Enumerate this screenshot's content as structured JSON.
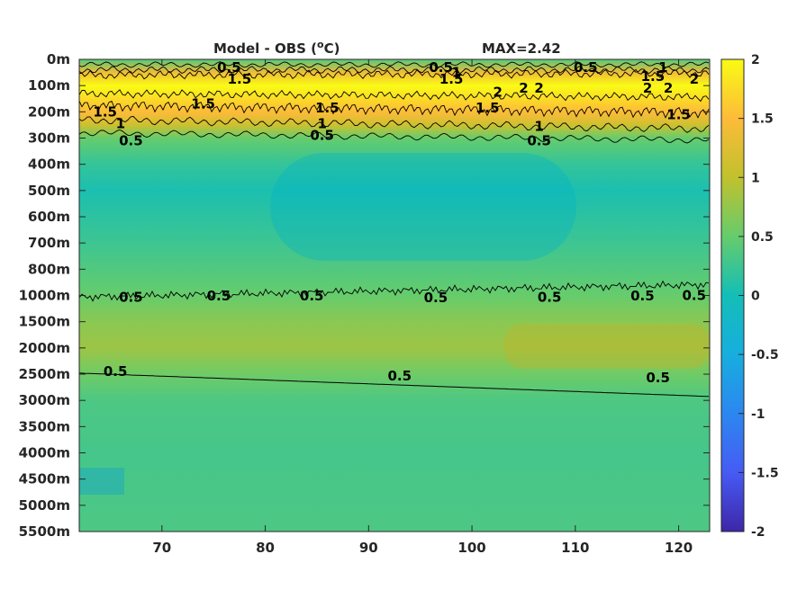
{
  "chart_data": {
    "type": "heatmap",
    "title": "Model - OBS (",
    "title_sup": "o",
    "title_unit": "C)",
    "annotation": "MAX=2.42",
    "x_ticks": [
      70,
      80,
      90,
      100,
      110,
      120
    ],
    "xlim": [
      62,
      123
    ],
    "y_ticks": [
      "0m",
      "100m",
      "200m",
      "300m",
      "400m",
      "500m",
      "600m",
      "700m",
      "800m",
      "1000m",
      "1500m",
      "2000m",
      "2500m",
      "3000m",
      "3500m",
      "4000m",
      "4500m",
      "5000m",
      "5500m"
    ],
    "colorbar": {
      "ticks": [
        "2",
        "1.5",
        "1",
        "0.5",
        "0",
        "-0.5",
        "-1",
        "-1.5",
        "-2"
      ],
      "range": [
        -2,
        2
      ],
      "colormap": "parula"
    },
    "field_levels": [
      {
        "depth": "0m",
        "value": 0.4
      },
      {
        "depth": "50m",
        "value": 1.4
      },
      {
        "depth": "100m",
        "value": 2.0
      },
      {
        "depth": "200m",
        "value": 1.5
      },
      {
        "depth": "250m",
        "value": 1.1
      },
      {
        "depth": "300m",
        "value": 0.5
      },
      {
        "depth": "400m",
        "value": 0.2
      },
      {
        "depth": "500m",
        "value": 0.05
      },
      {
        "depth": "700m",
        "value": 0.25
      },
      {
        "depth": "1000m",
        "value": 0.5
      },
      {
        "depth": "1500m",
        "value": 0.7
      },
      {
        "depth": "2000m",
        "value": 0.8
      },
      {
        "depth": "2500m",
        "value": 0.55
      },
      {
        "depth": "3000m",
        "value": 0.35
      },
      {
        "depth": "4000m",
        "value": 0.3
      },
      {
        "depth": "5500m",
        "value": 0.35
      }
    ],
    "contour_labels": [
      {
        "text": "0.5",
        "x": 76.5,
        "depth": "30m"
      },
      {
        "text": "1.5",
        "x": 77.5,
        "depth": "75m"
      },
      {
        "text": "0.5",
        "x": 97.0,
        "depth": "30m"
      },
      {
        "text": "1.5",
        "x": 98.0,
        "depth": "75m"
      },
      {
        "text": "1",
        "x": 98.5,
        "depth": "50m"
      },
      {
        "text": "0.5",
        "x": 111.0,
        "depth": "30m"
      },
      {
        "text": "1",
        "x": 118.5,
        "depth": "30m"
      },
      {
        "text": "1.5",
        "x": 117.5,
        "depth": "65m"
      },
      {
        "text": "2",
        "x": 121.5,
        "depth": "75m"
      },
      {
        "text": "2",
        "x": 119.0,
        "depth": "110m"
      },
      {
        "text": "2",
        "x": 117.0,
        "depth": "110m"
      },
      {
        "text": "2",
        "x": 106.5,
        "depth": "110m"
      },
      {
        "text": "2",
        "x": 102.5,
        "depth": "125m"
      },
      {
        "text": "2",
        "x": 105.0,
        "depth": "110m"
      },
      {
        "text": "1.5",
        "x": 64.5,
        "depth": "200m"
      },
      {
        "text": "1.5",
        "x": 74.0,
        "depth": "170m"
      },
      {
        "text": "1.5",
        "x": 86.0,
        "depth": "185m"
      },
      {
        "text": "1.5",
        "x": 101.5,
        "depth": "185m"
      },
      {
        "text": "1.5",
        "x": 120.0,
        "depth": "210m"
      },
      {
        "text": "1",
        "x": 66.0,
        "depth": "245m"
      },
      {
        "text": "1",
        "x": 85.5,
        "depth": "245m"
      },
      {
        "text": "1",
        "x": 106.5,
        "depth": "255m"
      },
      {
        "text": "0.5",
        "x": 67.0,
        "depth": "310m"
      },
      {
        "text": "0.5",
        "x": 85.5,
        "depth": "290m"
      },
      {
        "text": "0.5",
        "x": 106.5,
        "depth": "310m"
      },
      {
        "text": "0.5",
        "x": 67.0,
        "depth": "1030m"
      },
      {
        "text": "0.5",
        "x": 75.5,
        "depth": "1010m"
      },
      {
        "text": "0.5",
        "x": 84.5,
        "depth": "1010m"
      },
      {
        "text": "0.5",
        "x": 96.5,
        "depth": "1040m"
      },
      {
        "text": "0.5",
        "x": 107.5,
        "depth": "1030m"
      },
      {
        "text": "0.5",
        "x": 116.5,
        "depth": "1010m"
      },
      {
        "text": "0.5",
        "x": 121.5,
        "depth": "1000m"
      },
      {
        "text": "0.5",
        "x": 65.5,
        "depth": "2450m"
      },
      {
        "text": "0.5",
        "x": 93.0,
        "depth": "2530m"
      },
      {
        "text": "0.5",
        "x": 118.0,
        "depth": "2570m"
      }
    ]
  }
}
